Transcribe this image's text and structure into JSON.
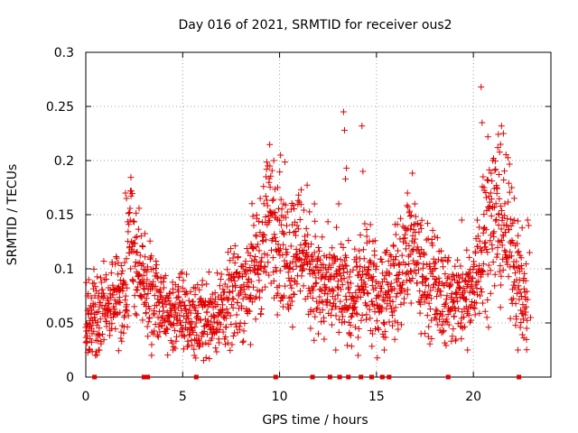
{
  "chart_data": {
    "type": "scatter",
    "title": "Day 016 of 2021, SRMTID for receiver ous2",
    "xlabel": "GPS time / hours",
    "ylabel": "SRMTID / TECUs",
    "xlim": [
      0,
      24
    ],
    "ylim": [
      0,
      0.3
    ],
    "x_ticks": [
      0,
      5,
      10,
      15,
      20
    ],
    "x_tick_labels": [
      "0",
      "5",
      "10",
      "15",
      "20"
    ],
    "y_ticks": [
      0,
      0.05,
      0.1,
      0.15,
      0.2,
      0.25,
      0.3
    ],
    "y_tick_labels": [
      "0",
      "0.05",
      "0.1",
      "0.15",
      "0.2",
      "0.25",
      "0.3"
    ],
    "grid": true,
    "marker": "plus",
    "color": "#e00000",
    "trend": [
      [
        0.0,
        0.05
      ],
      [
        0.5,
        0.06
      ],
      [
        1.0,
        0.06
      ],
      [
        1.5,
        0.07
      ],
      [
        2.0,
        0.08
      ],
      [
        2.3,
        0.13
      ],
      [
        2.6,
        0.11
      ],
      [
        3.0,
        0.08
      ],
      [
        3.5,
        0.07
      ],
      [
        4.0,
        0.06
      ],
      [
        5.0,
        0.06
      ],
      [
        5.5,
        0.05
      ],
      [
        6.0,
        0.055
      ],
      [
        7.0,
        0.06
      ],
      [
        7.5,
        0.07
      ],
      [
        8.0,
        0.08
      ],
      [
        9.0,
        0.11
      ],
      [
        9.6,
        0.15
      ],
      [
        10.0,
        0.13
      ],
      [
        10.5,
        0.11
      ],
      [
        11.0,
        0.125
      ],
      [
        11.5,
        0.11
      ],
      [
        12.0,
        0.085
      ],
      [
        13.0,
        0.08
      ],
      [
        14.0,
        0.075
      ],
      [
        14.5,
        0.09
      ],
      [
        15.0,
        0.075
      ],
      [
        16.0,
        0.09
      ],
      [
        16.8,
        0.12
      ],
      [
        17.5,
        0.09
      ],
      [
        18.5,
        0.075
      ],
      [
        19.5,
        0.07
      ],
      [
        20.0,
        0.085
      ],
      [
        20.5,
        0.13
      ],
      [
        21.2,
        0.15
      ],
      [
        22.0,
        0.12
      ],
      [
        22.5,
        0.08
      ],
      [
        22.8,
        0.06
      ]
    ],
    "series": [
      {
        "name": "SRMTID",
        "points": [
          [
            0.0,
            0.032
          ],
          [
            0.05,
            0.033
          ],
          [
            0.1,
            0.075
          ],
          [
            0.15,
            0.09
          ],
          [
            0.2,
            0.052
          ],
          [
            0.3,
            0.045
          ],
          [
            0.4,
            0.065
          ],
          [
            0.5,
            0.02
          ],
          [
            0.6,
            0.04
          ],
          [
            0.7,
            0.025
          ],
          [
            2.05,
            0.17
          ],
          [
            2.1,
            0.165
          ],
          [
            2.25,
            0.152
          ],
          [
            2.35,
            0.125
          ],
          [
            2.6,
            0.115
          ],
          [
            2.7,
            0.105
          ],
          [
            2.9,
            0.09
          ],
          [
            3.0,
            0.088
          ],
          [
            3.4,
            0.03
          ],
          [
            4.5,
            0.025
          ],
          [
            5.2,
            0.095
          ],
          [
            5.6,
            0.02
          ],
          [
            5.9,
            0.03
          ],
          [
            7.0,
            0.095
          ],
          [
            7.6,
            0.11
          ],
          [
            8.5,
            0.03
          ],
          [
            8.8,
            0.13
          ],
          [
            9.0,
            0.165
          ],
          [
            9.3,
            0.185
          ],
          [
            9.5,
            0.195
          ],
          [
            9.7,
            0.2
          ],
          [
            9.9,
            0.175
          ],
          [
            10.05,
            0.205
          ],
          [
            10.2,
            0.16
          ],
          [
            10.6,
            0.155
          ],
          [
            10.9,
            0.14
          ],
          [
            11.3,
            0.13
          ],
          [
            11.6,
            0.045
          ],
          [
            11.8,
            0.16
          ],
          [
            12.0,
            0.04
          ],
          [
            12.3,
            0.035
          ],
          [
            12.7,
            0.11
          ],
          [
            12.9,
            0.025
          ],
          [
            13.05,
            0.16
          ],
          [
            13.3,
            0.245
          ],
          [
            13.35,
            0.228
          ],
          [
            13.4,
            0.183
          ],
          [
            13.45,
            0.193
          ],
          [
            13.6,
            0.04
          ],
          [
            14.05,
            0.02
          ],
          [
            14.25,
            0.232
          ],
          [
            14.3,
            0.19
          ],
          [
            14.5,
            0.13
          ],
          [
            14.8,
            0.04
          ],
          [
            15.4,
            0.025
          ],
          [
            15.8,
            0.06
          ],
          [
            16.6,
            0.17
          ],
          [
            16.8,
            0.14
          ],
          [
            17.3,
            0.04
          ],
          [
            18.0,
            0.13
          ],
          [
            19.1,
            0.035
          ],
          [
            19.4,
            0.145
          ],
          [
            19.7,
            0.025
          ],
          [
            20.2,
            0.145
          ],
          [
            20.4,
            0.268
          ],
          [
            20.45,
            0.235
          ],
          [
            20.5,
            0.185
          ],
          [
            20.55,
            0.175
          ],
          [
            20.75,
            0.222
          ],
          [
            20.9,
            0.17
          ],
          [
            21.0,
            0.2
          ],
          [
            21.2,
            0.175
          ],
          [
            21.3,
            0.15
          ],
          [
            21.4,
            0.215
          ],
          [
            21.45,
            0.232
          ],
          [
            21.55,
            0.225
          ],
          [
            21.7,
            0.14
          ],
          [
            21.9,
            0.125
          ],
          [
            22.1,
            0.145
          ],
          [
            22.3,
            0.025
          ],
          [
            22.5,
            0.1
          ],
          [
            22.7,
            0.06
          ],
          [
            22.75,
            0.045
          ],
          [
            22.8,
            0.145
          ],
          [
            22.85,
            0.14
          ],
          [
            22.9,
            0.115
          ],
          [
            22.95,
            0.055
          ]
        ]
      }
    ],
    "baseline_markers": {
      "y": 0,
      "x": [
        0.45,
        3.0,
        3.2,
        5.7,
        9.8,
        11.7,
        12.6,
        13.1,
        13.55,
        14.2,
        14.75,
        15.3,
        15.65,
        18.7,
        22.35
      ]
    }
  }
}
